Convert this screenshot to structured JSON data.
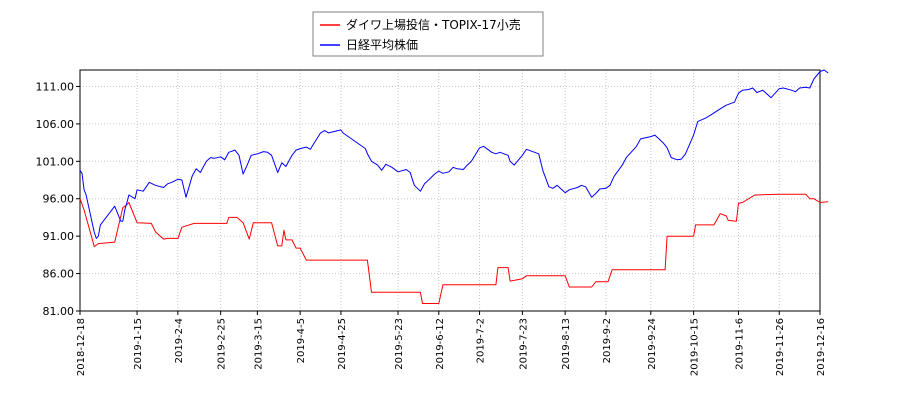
{
  "chart_data": {
    "type": "line",
    "xlabel": "",
    "ylabel": "",
    "ylim": [
      81.0,
      113.2
    ],
    "grid": "vertical-and-horizontal",
    "legend_placement": "top-center",
    "y_ticks": [
      "81.00",
      "86.00",
      "91.00",
      "96.00",
      "101.00",
      "106.00",
      "111.00"
    ],
    "x_ticks": [
      "2018-12-18",
      "2019-1-15",
      "2019-2-4",
      "2019-2-25",
      "2019-3-15",
      "2019-4-5",
      "2019-4-25",
      "2019-5-23",
      "2019-6-12",
      "2019-7-2",
      "2019-7-23",
      "2019-8-13",
      "2019-9-2",
      "2019-9-24",
      "2019-10-15",
      "2019-11-6",
      "2019-11-26",
      "2019-12-16"
    ],
    "series": [
      {
        "name": "ダイワ上場投信・TOPIX-17小売",
        "color": "#ff0000",
        "points": [
          [
            "2018-12-18",
            96.0
          ],
          [
            "2018-12-20",
            94.5
          ],
          [
            "2018-12-25",
            89.6
          ],
          [
            "2018-12-27",
            90.0
          ],
          [
            "2019-1-4",
            90.2
          ],
          [
            "2019-1-8",
            94.8
          ],
          [
            "2019-1-10",
            95.2
          ],
          [
            "2019-1-11",
            95.5
          ],
          [
            "2019-1-15",
            92.8
          ],
          [
            "2019-1-22",
            92.7
          ],
          [
            "2019-1-24",
            91.6
          ],
          [
            "2019-1-28",
            90.6
          ],
          [
            "2019-1-30",
            90.7
          ],
          [
            "2019-2-4",
            90.7
          ],
          [
            "2019-2-6",
            92.2
          ],
          [
            "2019-2-12",
            92.7
          ],
          [
            "2019-2-20",
            92.7
          ],
          [
            "2019-2-25",
            92.7
          ],
          [
            "2019-2-28",
            92.7
          ],
          [
            "2019-3-1",
            93.5
          ],
          [
            "2019-3-5",
            93.5
          ],
          [
            "2019-3-8",
            92.8
          ],
          [
            "2019-3-11",
            90.6
          ],
          [
            "2019-3-13",
            92.8
          ],
          [
            "2019-3-15",
            92.8
          ],
          [
            "2019-3-22",
            92.8
          ],
          [
            "2019-3-25",
            89.7
          ],
          [
            "2019-3-27",
            89.7
          ],
          [
            "2019-3-28",
            91.8
          ],
          [
            "2019-3-29",
            90.5
          ],
          [
            "2019-4-1",
            90.5
          ],
          [
            "2019-4-3",
            89.4
          ],
          [
            "2019-4-5",
            89.4
          ],
          [
            "2019-4-8",
            87.8
          ],
          [
            "2019-4-25",
            87.8
          ],
          [
            "2019-5-8",
            87.8
          ],
          [
            "2019-5-10",
            83.5
          ],
          [
            "2019-5-23",
            83.5
          ],
          [
            "2019-6-3",
            83.5
          ],
          [
            "2019-6-4",
            82.0
          ],
          [
            "2019-6-12",
            82.0
          ],
          [
            "2019-6-14",
            84.5
          ],
          [
            "2019-7-2",
            84.5
          ],
          [
            "2019-7-10",
            84.5
          ],
          [
            "2019-7-11",
            86.8
          ],
          [
            "2019-7-16",
            86.8
          ],
          [
            "2019-7-17",
            85.0
          ],
          [
            "2019-7-23",
            85.3
          ],
          [
            "2019-7-25",
            85.7
          ],
          [
            "2019-8-13",
            85.7
          ],
          [
            "2019-8-15",
            84.2
          ],
          [
            "2019-8-26",
            84.2
          ],
          [
            "2019-8-28",
            84.9
          ],
          [
            "2019-9-3",
            84.9
          ],
          [
            "2019-9-5",
            86.5
          ],
          [
            "2019-9-24",
            86.5
          ],
          [
            "2019-10-1",
            86.5
          ],
          [
            "2019-10-2",
            91.0
          ],
          [
            "2019-10-15",
            91.0
          ],
          [
            "2019-10-16",
            92.5
          ],
          [
            "2019-10-25",
            92.5
          ],
          [
            "2019-10-28",
            94.0
          ],
          [
            "2019-10-31",
            93.7
          ],
          [
            "2019-11-1",
            93.1
          ],
          [
            "2019-11-5",
            93.0
          ],
          [
            "2019-11-6",
            95.4
          ],
          [
            "2019-11-8",
            95.5
          ],
          [
            "2019-11-11",
            96.0
          ],
          [
            "2019-11-14",
            96.5
          ],
          [
            "2019-11-26",
            96.6
          ],
          [
            "2019-12-9",
            96.6
          ],
          [
            "2019-12-11",
            96.0
          ],
          [
            "2019-12-13",
            96.0
          ],
          [
            "2019-12-16",
            95.5
          ],
          [
            "2019-12-20",
            95.6
          ]
        ]
      },
      {
        "name": "日経平均株価",
        "color": "#0000ff",
        "points": [
          [
            "2018-12-18",
            99.8
          ],
          [
            "2018-12-19",
            99.4
          ],
          [
            "2018-12-20",
            97.2
          ],
          [
            "2018-12-21",
            96.5
          ],
          [
            "2018-12-25",
            91.5
          ],
          [
            "2018-12-26",
            90.7
          ],
          [
            "2018-12-27",
            91.0
          ],
          [
            "2018-12-28",
            92.5
          ],
          [
            "2019-1-4",
            95.0
          ],
          [
            "2019-1-7",
            93.0
          ],
          [
            "2019-1-8",
            93.0
          ],
          [
            "2019-1-9",
            94.5
          ],
          [
            "2019-1-10",
            95.5
          ],
          [
            "2019-1-11",
            96.5
          ],
          [
            "2019-1-14",
            96.0
          ],
          [
            "2019-1-15",
            97.2
          ],
          [
            "2019-1-18",
            97.0
          ],
          [
            "2019-1-21",
            98.2
          ],
          [
            "2019-1-24",
            97.8
          ],
          [
            "2019-1-28",
            97.5
          ],
          [
            "2019-1-30",
            98.0
          ],
          [
            "2019-2-1",
            98.2
          ],
          [
            "2019-2-4",
            98.6
          ],
          [
            "2019-2-6",
            98.5
          ],
          [
            "2019-2-8",
            96.2
          ],
          [
            "2019-2-11",
            99.0
          ],
          [
            "2019-2-13",
            100.0
          ],
          [
            "2019-2-15",
            99.5
          ],
          [
            "2019-2-18",
            101.0
          ],
          [
            "2019-2-20",
            101.5
          ],
          [
            "2019-2-22",
            101.4
          ],
          [
            "2019-2-25",
            101.6
          ],
          [
            "2019-2-27",
            101.2
          ],
          [
            "2019-3-1",
            102.2
          ],
          [
            "2019-3-4",
            102.5
          ],
          [
            "2019-3-6",
            101.8
          ],
          [
            "2019-3-8",
            99.3
          ],
          [
            "2019-3-10",
            100.5
          ],
          [
            "2019-3-12",
            101.8
          ],
          [
            "2019-3-15",
            102.0
          ],
          [
            "2019-3-18",
            102.3
          ],
          [
            "2019-3-20",
            102.2
          ],
          [
            "2019-3-22",
            101.8
          ],
          [
            "2019-3-25",
            99.5
          ],
          [
            "2019-3-27",
            100.8
          ],
          [
            "2019-3-29",
            100.3
          ],
          [
            "2019-4-1",
            101.8
          ],
          [
            "2019-4-3",
            102.5
          ],
          [
            "2019-4-5",
            102.7
          ],
          [
            "2019-4-8",
            102.9
          ],
          [
            "2019-4-10",
            102.6
          ],
          [
            "2019-4-12",
            103.5
          ],
          [
            "2019-4-15",
            104.8
          ],
          [
            "2019-4-17",
            105.1
          ],
          [
            "2019-4-19",
            104.8
          ],
          [
            "2019-4-22",
            105.0
          ],
          [
            "2019-4-25",
            105.2
          ],
          [
            "2019-4-26",
            104.8
          ],
          [
            "2019-5-7",
            102.7
          ],
          [
            "2019-5-8",
            102.0
          ],
          [
            "2019-5-10",
            101.0
          ],
          [
            "2019-5-13",
            100.5
          ],
          [
            "2019-5-15",
            99.8
          ],
          [
            "2019-5-17",
            100.6
          ],
          [
            "2019-5-20",
            100.2
          ],
          [
            "2019-5-23",
            99.6
          ],
          [
            "2019-5-27",
            99.9
          ],
          [
            "2019-5-29",
            99.5
          ],
          [
            "2019-5-31",
            97.8
          ],
          [
            "2019-6-3",
            97.0
          ],
          [
            "2019-6-5",
            98.0
          ],
          [
            "2019-6-7",
            98.5
          ],
          [
            "2019-6-10",
            99.3
          ],
          [
            "2019-6-12",
            99.7
          ],
          [
            "2019-6-14",
            99.4
          ],
          [
            "2019-6-17",
            99.6
          ],
          [
            "2019-6-19",
            100.2
          ],
          [
            "2019-6-21",
            100.0
          ],
          [
            "2019-6-24",
            99.9
          ],
          [
            "2019-6-26",
            100.5
          ],
          [
            "2019-6-28",
            101.0
          ],
          [
            "2019-7-2",
            102.8
          ],
          [
            "2019-7-4",
            103.0
          ],
          [
            "2019-7-8",
            102.2
          ],
          [
            "2019-7-10",
            102.0
          ],
          [
            "2019-7-12",
            102.2
          ],
          [
            "2019-7-16",
            101.8
          ],
          [
            "2019-7-17",
            101.0
          ],
          [
            "2019-7-19",
            100.5
          ],
          [
            "2019-7-23",
            101.8
          ],
          [
            "2019-7-25",
            102.6
          ],
          [
            "2019-7-29",
            102.2
          ],
          [
            "2019-7-31",
            102.0
          ],
          [
            "2019-8-2",
            99.8
          ],
          [
            "2019-8-5",
            97.6
          ],
          [
            "2019-8-7",
            97.4
          ],
          [
            "2019-8-9",
            97.8
          ],
          [
            "2019-8-13",
            96.8
          ],
          [
            "2019-8-15",
            97.2
          ],
          [
            "2019-8-19",
            97.5
          ],
          [
            "2019-8-21",
            97.8
          ],
          [
            "2019-8-23",
            97.6
          ],
          [
            "2019-8-26",
            96.2
          ],
          [
            "2019-8-28",
            96.7
          ],
          [
            "2019-8-30",
            97.3
          ],
          [
            "2019-9-2",
            97.4
          ],
          [
            "2019-9-4",
            97.8
          ],
          [
            "2019-9-6",
            99.0
          ],
          [
            "2019-9-10",
            100.5
          ],
          [
            "2019-9-12",
            101.5
          ],
          [
            "2019-9-17",
            103.0
          ],
          [
            "2019-9-19",
            104.0
          ],
          [
            "2019-9-24",
            104.3
          ],
          [
            "2019-9-26",
            104.5
          ],
          [
            "2019-9-30",
            103.5
          ],
          [
            "2019-10-2",
            102.8
          ],
          [
            "2019-10-4",
            101.5
          ],
          [
            "2019-10-7",
            101.2
          ],
          [
            "2019-10-9",
            101.3
          ],
          [
            "2019-10-11",
            102.0
          ],
          [
            "2019-10-15",
            104.5
          ],
          [
            "2019-10-17",
            106.3
          ],
          [
            "2019-10-21",
            106.8
          ],
          [
            "2019-10-24",
            107.3
          ],
          [
            "2019-10-28",
            108.0
          ],
          [
            "2019-10-31",
            108.5
          ],
          [
            "2019-11-4",
            108.9
          ],
          [
            "2019-11-6",
            110.1
          ],
          [
            "2019-11-8",
            110.5
          ],
          [
            "2019-11-11",
            110.6
          ],
          [
            "2019-11-13",
            110.8
          ],
          [
            "2019-11-15",
            110.2
          ],
          [
            "2019-11-18",
            110.5
          ],
          [
            "2019-11-20",
            110.0
          ],
          [
            "2019-11-22",
            109.5
          ],
          [
            "2019-11-26",
            110.7
          ],
          [
            "2019-11-28",
            110.8
          ],
          [
            "2019-12-2",
            110.5
          ],
          [
            "2019-12-4",
            110.3
          ],
          [
            "2019-12-6",
            110.8
          ],
          [
            "2019-12-9",
            110.9
          ],
          [
            "2019-12-11",
            110.8
          ],
          [
            "2019-12-13",
            112.0
          ],
          [
            "2019-12-16",
            113.0
          ],
          [
            "2019-12-18",
            113.2
          ],
          [
            "2019-12-20",
            112.8
          ]
        ]
      }
    ]
  }
}
